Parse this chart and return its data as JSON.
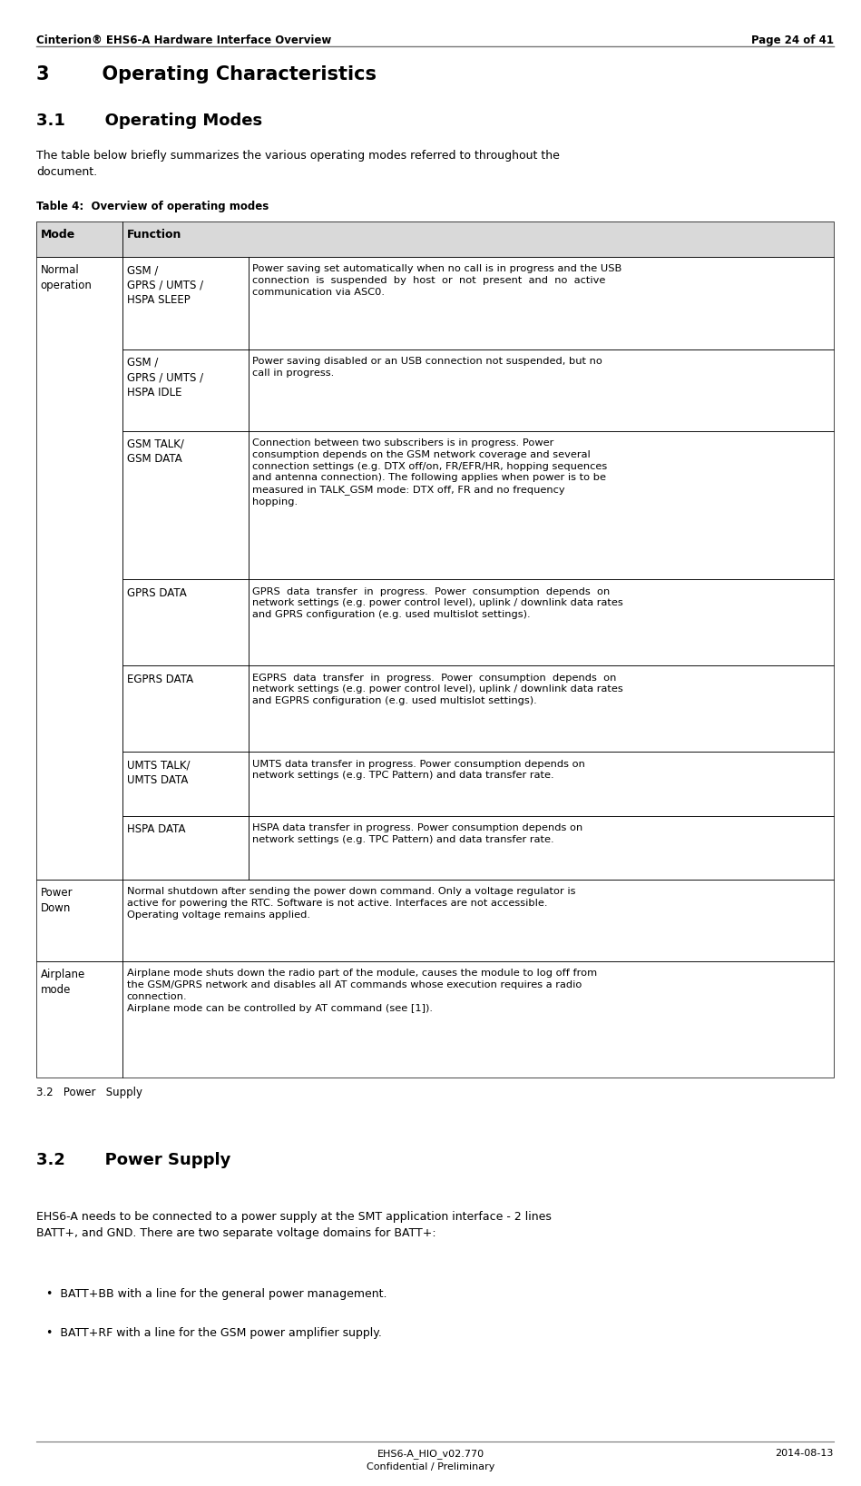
{
  "page_width": 9.49,
  "page_height": 16.37,
  "bg_color": "#ffffff",
  "header_left": "Cinterion® EHS6-A Hardware Interface Overview",
  "header_right": "Page 24 of 41",
  "footer_center1": "EHS6-A_HIO_v02.770",
  "footer_center2": "Confidential / Preliminary",
  "footer_right": "2014-08-13",
  "section_title": "3        Operating Characteristics",
  "subsection_title": "3.1       Operating Modes",
  "intro_text": "The table below briefly summarizes the various operating modes referred to throughout the\ndocument.",
  "table_caption": "Table 4:  Overview of operating modes",
  "table_header": [
    "Mode",
    "Function"
  ],
  "table_header_bg": "#d9d9d9",
  "table_border_color": "#000000",
  "section22_title": "3.2       Power Supply",
  "section22_text1": "EHS6-A needs to be connected to a power supply at the SMT application interface - 2 lines\nBATT+, and GND. There are two separate voltage domains for BATT+:",
  "section22_bullet1": "•  BATT+BB with a line for the general power management.",
  "section22_bullet2": "•  BATT+RF with a line for the GSM power amplifier supply.",
  "bottom_note": "3.2   Power   Supply",
  "table_rows": [
    {
      "col1": "Normal\noperation",
      "col2": "GSM /\nGPRS / UMTS /\nHSPA SLEEP",
      "col3": "Power saving set automatically when no call is in progress and the USB\nconnection  is  suspended  by  host  or  not  present  and  no  active\ncommunication via ASC0.",
      "col1_rowspan": 7
    },
    {
      "col1": "",
      "col2": "GSM /\nGPRS / UMTS /\nHSPA IDLE",
      "col3": "Power saving disabled or an USB connection not suspended, but no\ncall in progress."
    },
    {
      "col1": "",
      "col2": "GSM TALK/\nGSM DATA",
      "col3": "Connection between two subscribers is in progress. Power\nconsumption depends on the GSM network coverage and several\nconnection settings (e.g. DTX off/on, FR/EFR/HR, hopping sequences\nand antenna connection). The following applies when power is to be\nmeasured in TALK_GSM mode: DTX off, FR and no frequency\nhopping."
    },
    {
      "col1": "",
      "col2": "GPRS DATA",
      "col3": "GPRS  data  transfer  in  progress.  Power  consumption  depends  on\nnetwork settings (e.g. power control level), uplink / downlink data rates\nand GPRS configuration (e.g. used multislot settings)."
    },
    {
      "col1": "",
      "col2": "EGPRS DATA",
      "col3": "EGPRS  data  transfer  in  progress.  Power  consumption  depends  on\nnetwork settings (e.g. power control level), uplink / downlink data rates\nand EGPRS configuration (e.g. used multislot settings)."
    },
    {
      "col1": "",
      "col2": "UMTS TALK/\nUMTS DATA",
      "col3": "UMTS data transfer in progress. Power consumption depends on\nnetwork settings (e.g. TPC Pattern) and data transfer rate."
    },
    {
      "col1": "",
      "col2": "HSPA DATA",
      "col3": "HSPA data transfer in progress. Power consumption depends on\nnetwork settings (e.g. TPC Pattern) and data transfer rate."
    },
    {
      "col1": "Power\nDown",
      "col2_merged": true,
      "col3": "Normal shutdown after sending the power down command. Only a voltage regulator is\nactive for powering the RTC. Software is not active. Interfaces are not accessible.\nOperating voltage remains applied."
    },
    {
      "col1": "Airplane\nmode",
      "col2_merged": true,
      "col3": "Airplane mode shuts down the radio part of the module, causes the module to log off from\nthe GSM/GPRS network and disables all AT commands whose execution requires a radio\nconnection.\nAirplane mode can be controlled by AT command (see [1])."
    }
  ]
}
